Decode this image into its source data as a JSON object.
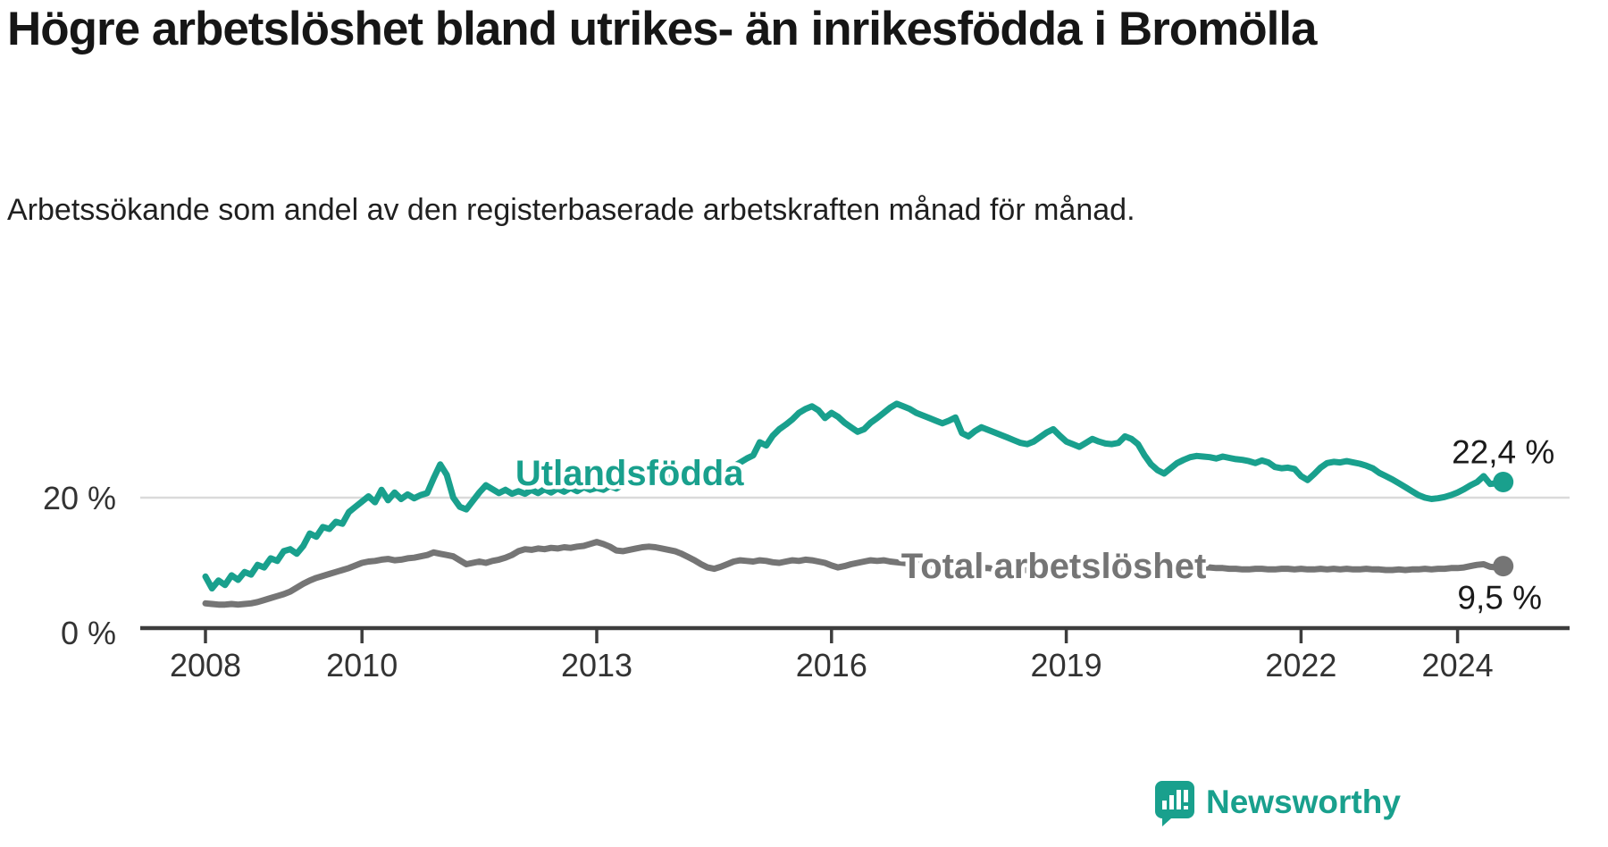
{
  "title": "Högre arbetslöshet bland utrikes- än inrikesfödda i Bromölla",
  "subtitle": "Arbetssökande som andel av den registerbaserade arbetskraften månad för månad.",
  "branding": {
    "logo_text": "Newsworthy",
    "logo_color": "#19a08d"
  },
  "colors": {
    "teal": "#19a08d",
    "gray": "#757575",
    "axis": "#3d3d3d",
    "tick_label": "#333333",
    "grid": "#dadada",
    "value_label": "#1a1a1a"
  },
  "chart_data": {
    "type": "line",
    "x_unit": "month",
    "x_start": "2008-01",
    "x_end": "2024-08",
    "x_ticks": [
      "2008",
      "2010",
      "2013",
      "2016",
      "2019",
      "2022",
      "2024"
    ],
    "y_ticks": [
      {
        "value": 0,
        "label": "0 %"
      },
      {
        "value": 20,
        "label": "20 %"
      }
    ],
    "ylim": [
      0,
      40
    ],
    "grid": "y-only",
    "legend_position": "inline-labels",
    "series": [
      {
        "name": "Utlandsfödda",
        "end_label": "22,4 %",
        "end_value": 22.4,
        "color": "#19a08d",
        "label_anchor": {
          "year": 2011.96,
          "pct": 21.9
        },
        "values": [
          7.9,
          6.1,
          7.3,
          6.6,
          8.1,
          7.4,
          8.6,
          8.2,
          9.7,
          9.3,
          10.7,
          10.3,
          11.8,
          12.1,
          11.4,
          12.6,
          14.5,
          14.0,
          15.5,
          15.2,
          16.3,
          16.0,
          17.8,
          18.6,
          19.4,
          20.2,
          19.3,
          21.2,
          19.6,
          20.8,
          19.8,
          20.5,
          19.9,
          20.4,
          20.7,
          23.0,
          25.1,
          23.5,
          20.0,
          18.6,
          18.2,
          19.5,
          20.8,
          21.9,
          21.3,
          20.7,
          21.2,
          20.6,
          21.0,
          20.6,
          21.2,
          20.7,
          21.3,
          20.8,
          21.4,
          20.9,
          21.5,
          21.0,
          21.6,
          21.2,
          21.5,
          21.2,
          21.8,
          21.4,
          22.0,
          22.3,
          22.0,
          22.6,
          22.3,
          22.9,
          23.2,
          23.0,
          23.5,
          23.2,
          23.8,
          23.5,
          24.0,
          24.3,
          24.1,
          24.6,
          24.4,
          24.8,
          25.4,
          26.0,
          26.5,
          28.5,
          28.0,
          29.5,
          30.5,
          31.2,
          32.0,
          33.0,
          33.6,
          34.0,
          33.4,
          32.2,
          33.0,
          32.4,
          31.5,
          30.8,
          30.1,
          30.5,
          31.5,
          32.2,
          33.0,
          33.8,
          34.4,
          34.0,
          33.6,
          33.0,
          32.6,
          32.2,
          31.8,
          31.4,
          31.8,
          32.3,
          29.9,
          29.4,
          30.2,
          30.8,
          30.4,
          30.0,
          29.6,
          29.2,
          28.8,
          28.4,
          28.2,
          28.6,
          29.3,
          30.0,
          30.5,
          29.5,
          28.6,
          28.2,
          27.8,
          28.4,
          29.0,
          28.6,
          28.3,
          28.2,
          28.4,
          29.4,
          29.0,
          28.2,
          26.5,
          25.1,
          24.2,
          23.7,
          24.5,
          25.3,
          25.8,
          26.2,
          26.4,
          26.3,
          26.2,
          26.0,
          26.3,
          26.1,
          25.9,
          25.8,
          25.6,
          25.3,
          25.7,
          25.4,
          24.7,
          24.5,
          24.6,
          24.4,
          23.3,
          22.7,
          23.6,
          24.6,
          25.3,
          25.5,
          25.4,
          25.6,
          25.4,
          25.2,
          24.9,
          24.5,
          23.8,
          23.3,
          22.8,
          22.2,
          21.6,
          21.0,
          20.4,
          20.0,
          19.8,
          19.9,
          20.1,
          20.4,
          20.8,
          21.3,
          21.9,
          22.4,
          23.3,
          22.1,
          22.2,
          22.4
        ]
      },
      {
        "name": "Total arbetslöshet",
        "end_label": "9,5 %",
        "end_value": 9.5,
        "color": "#757575",
        "label_anchor": {
          "year": 2016.89,
          "pct": 7.7
        },
        "values": [
          3.8,
          3.7,
          3.6,
          3.6,
          3.7,
          3.6,
          3.7,
          3.8,
          4.0,
          4.3,
          4.6,
          4.9,
          5.2,
          5.6,
          6.2,
          6.8,
          7.3,
          7.7,
          8.0,
          8.3,
          8.6,
          8.9,
          9.2,
          9.6,
          10.0,
          10.2,
          10.3,
          10.5,
          10.6,
          10.4,
          10.5,
          10.7,
          10.8,
          11.0,
          11.2,
          11.6,
          11.4,
          11.2,
          11.0,
          10.4,
          9.8,
          10.0,
          10.2,
          10.0,
          10.3,
          10.5,
          10.8,
          11.2,
          11.8,
          12.1,
          12.0,
          12.2,
          12.1,
          12.3,
          12.2,
          12.4,
          12.3,
          12.5,
          12.6,
          12.9,
          13.2,
          12.9,
          12.5,
          11.9,
          11.8,
          12.0,
          12.2,
          12.4,
          12.5,
          12.4,
          12.2,
          12.0,
          11.8,
          11.4,
          10.9,
          10.4,
          9.8,
          9.3,
          9.1,
          9.4,
          9.8,
          10.2,
          10.4,
          10.3,
          10.2,
          10.4,
          10.3,
          10.1,
          10.0,
          10.2,
          10.4,
          10.3,
          10.5,
          10.4,
          10.2,
          10.0,
          9.6,
          9.3,
          9.5,
          9.8,
          10.0,
          10.2,
          10.4,
          10.3,
          10.4,
          10.2,
          10.1,
          10.0,
          9.9,
          9.8,
          9.7,
          9.6,
          9.6,
          9.5,
          9.5,
          9.4,
          9.4,
          9.3,
          9.3,
          9.2,
          9.2,
          9.1,
          9.1,
          9.0,
          9.0,
          8.9,
          8.9,
          9.0,
          9.0,
          8.9,
          8.9,
          8.8,
          8.8,
          8.7,
          8.7,
          8.8,
          8.8,
          8.7,
          8.7,
          8.8,
          8.8,
          8.9,
          8.9,
          8.8,
          9.0,
          9.2,
          9.4,
          9.6,
          9.7,
          9.6,
          9.5,
          9.4,
          9.4,
          9.3,
          9.3,
          9.2,
          9.2,
          9.1,
          9.1,
          9.0,
          9.0,
          9.1,
          9.1,
          9.0,
          9.0,
          9.1,
          9.1,
          9.0,
          9.1,
          9.0,
          9.0,
          9.1,
          9.0,
          9.1,
          9.0,
          9.1,
          9.0,
          9.0,
          9.1,
          9.0,
          9.0,
          8.9,
          8.9,
          9.0,
          8.9,
          9.0,
          9.0,
          9.1,
          9.0,
          9.1,
          9.1,
          9.2,
          9.2,
          9.3,
          9.5,
          9.7,
          9.8,
          9.4,
          9.3,
          9.5
        ]
      }
    ]
  }
}
